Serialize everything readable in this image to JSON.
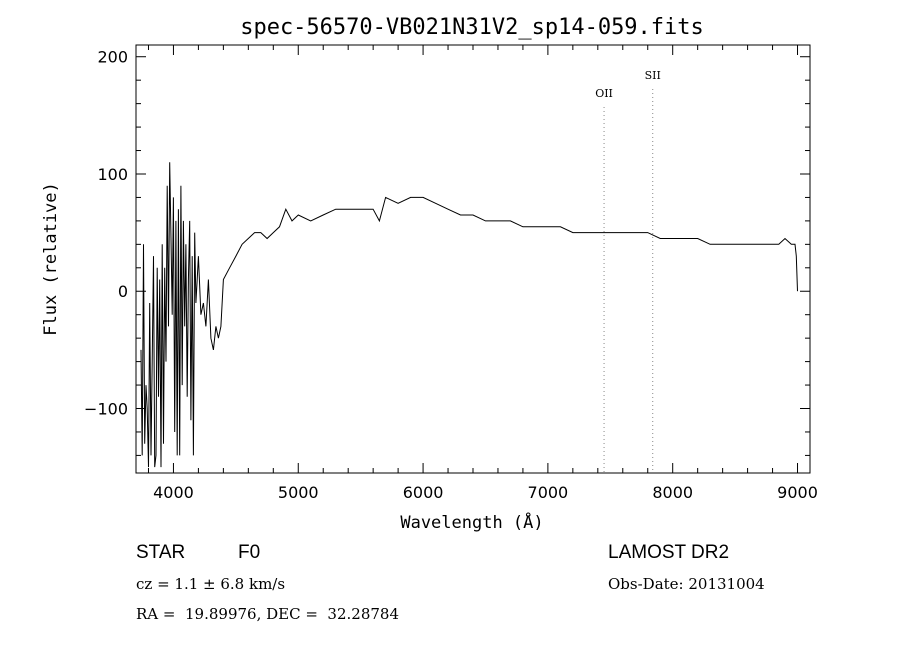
{
  "chart_data": {
    "type": "line",
    "title": "spec-56570-VB021N31V2_sp14-059.fits",
    "xlabel": "Wavelength (Å)",
    "ylabel": "Flux (relative)",
    "xlim": [
      3700,
      9100
    ],
    "ylim": [
      -155,
      210
    ],
    "xticks": [
      4000,
      5000,
      6000,
      7000,
      8000,
      9000
    ],
    "xtick_labels": [
      "4000",
      "5000",
      "6000",
      "7000",
      "8000",
      "9000"
    ],
    "yticks": [
      200,
      100,
      0,
      -100
    ],
    "ytick_labels": [
      "200",
      "100",
      "0",
      "−100"
    ],
    "grid": false,
    "series": [
      {
        "x": [
          3740,
          3750,
          3760,
          3770,
          3780,
          3790,
          3800,
          3810,
          3820,
          3830,
          3840,
          3850,
          3860,
          3870,
          3880,
          3890,
          3900,
          3910,
          3920,
          3930,
          3940,
          3950,
          3960,
          3970,
          3980,
          3990,
          4000,
          4010,
          4020,
          4030,
          4040,
          4050,
          4060,
          4070,
          4080,
          4090,
          4100,
          4110,
          4120,
          4130,
          4140,
          4150,
          4160,
          4170,
          4180,
          4190,
          4200,
          4220,
          4240,
          4260,
          4280,
          4300,
          4320,
          4340,
          4360,
          4380,
          4400,
          4450,
          4500,
          4550,
          4600,
          4650,
          4700,
          4750,
          4800,
          4850,
          4900,
          4950,
          5000,
          5100,
          5200,
          5300,
          5400,
          5500,
          5600,
          5650,
          5700,
          5800,
          5900,
          6000,
          6100,
          6200,
          6300,
          6400,
          6500,
          6600,
          6700,
          6800,
          6900,
          7000,
          7100,
          7200,
          7300,
          7400,
          7500,
          7600,
          7700,
          7800,
          7900,
          8000,
          8100,
          8200,
          8300,
          8400,
          8500,
          8600,
          8700,
          8800,
          8850,
          8900,
          8950,
          8980,
          8990,
          9000
        ],
        "y": [
          -50,
          -140,
          40,
          -130,
          -80,
          -100,
          -150,
          -10,
          -140,
          -60,
          30,
          -150,
          -140,
          20,
          -90,
          10,
          -150,
          40,
          -130,
          20,
          -60,
          90,
          -30,
          110,
          50,
          -20,
          80,
          -120,
          60,
          -140,
          70,
          -140,
          90,
          -80,
          60,
          -30,
          40,
          -90,
          10,
          60,
          -110,
          30,
          -140,
          50,
          -10,
          10,
          30,
          -20,
          -10,
          -30,
          10,
          -40,
          -50,
          -30,
          -40,
          -30,
          10,
          20,
          30,
          40,
          45,
          50,
          50,
          45,
          50,
          55,
          70,
          60,
          65,
          60,
          65,
          70,
          70,
          70,
          70,
          60,
          80,
          75,
          80,
          80,
          75,
          70,
          65,
          65,
          60,
          60,
          60,
          55,
          55,
          55,
          55,
          50,
          50,
          50,
          50,
          50,
          50,
          50,
          45,
          45,
          45,
          45,
          40,
          40,
          40,
          40,
          40,
          40,
          40,
          45,
          40,
          40,
          30,
          0
        ]
      }
    ],
    "annotations": [
      {
        "label": "OII",
        "x": 7450
      },
      {
        "label": "SII",
        "x": 7840
      }
    ]
  },
  "info": {
    "class": "STAR",
    "subclass": "F0",
    "survey": "LAMOST DR2",
    "cz": "cz = 1.1 ± 6.8 km/s",
    "obs_date": "Obs-Date: 20131004",
    "coords": "RA =  19.89976, DEC =  32.28784"
  },
  "colors": {
    "spectrum": "#000000",
    "line_markers": "#888888"
  }
}
